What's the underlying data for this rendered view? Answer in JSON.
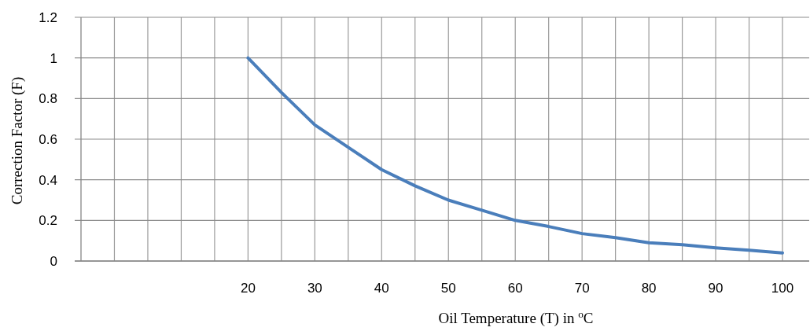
{
  "chart_data": {
    "type": "line",
    "xlabel": "Oil Temperature (T) in $^{o}$C",
    "ylabel": "Correction Factor (F)",
    "x": [
      20,
      25,
      30,
      35,
      40,
      45,
      50,
      55,
      60,
      65,
      70,
      75,
      80,
      85,
      90,
      95,
      100
    ],
    "series": [
      {
        "color": "#4a7ebb",
        "values": [
          1.0,
          0.83,
          0.67,
          0.56,
          0.45,
          0.37,
          0.3,
          0.25,
          0.2,
          0.17,
          0.135,
          0.115,
          0.09,
          0.08,
          0.065,
          0.053,
          0.04
        ]
      }
    ],
    "xlim": [
      -5,
      104
    ],
    "xticks": [
      {
        "value": 0,
        "label": null
      },
      {
        "value": 5,
        "label": null
      },
      {
        "value": 10,
        "label": null
      },
      {
        "value": 15,
        "label": null
      },
      20,
      {
        "value": 25,
        "label": null
      },
      30,
      {
        "value": 35,
        "label": null
      },
      40,
      {
        "value": 45,
        "label": null
      },
      50,
      {
        "value": 55,
        "label": null
      },
      60,
      {
        "value": 65,
        "label": null
      },
      70,
      {
        "value": 75,
        "label": null
      },
      80,
      {
        "value": 85,
        "label": null
      },
      90,
      {
        "value": 95,
        "label": null
      },
      100
    ],
    "ylim": [
      0,
      1.2
    ],
    "yticks": [
      0,
      0.2,
      0.4,
      0.6,
      0.8,
      1,
      1.2
    ],
    "grid": true,
    "marker": "none",
    "line_style": "solid"
  }
}
